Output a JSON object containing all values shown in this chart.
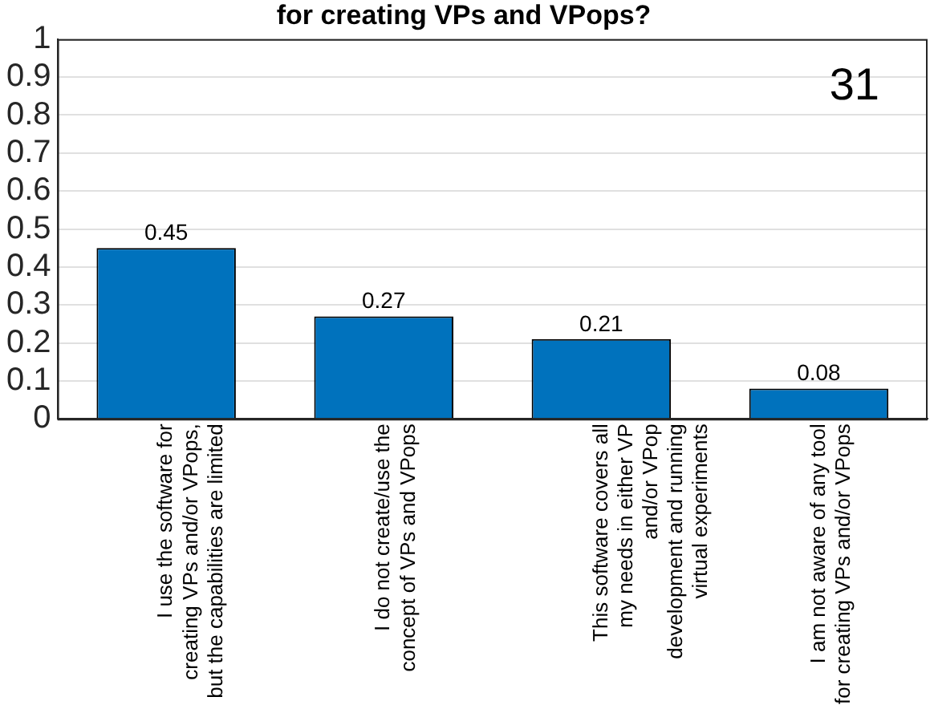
{
  "chart_data": {
    "type": "bar",
    "title": "for creating VPs and VPops?",
    "categories": [
      "I use the software for\ncreating VPs and/or VPops,\nbut the capabilities are limited",
      "I do not create/use the\nconcept of VPs and VPops",
      "This software covers all\nmy needs in either VP\nand/or VPop\ndevelopment and running\nvirtual experiments",
      "I am not aware of any tool\nfor creating VPs and/or VPops"
    ],
    "values": [
      0.45,
      0.27,
      0.21,
      0.08
    ],
    "color": "#0072bd",
    "ylim": [
      0,
      1
    ],
    "yticks": [
      0,
      0.1,
      0.2,
      0.3,
      0.4,
      0.5,
      0.6,
      0.7,
      0.8,
      0.9,
      1
    ],
    "grid": "y",
    "data_labels": true,
    "legend": false,
    "annotations": [
      "31"
    ]
  }
}
